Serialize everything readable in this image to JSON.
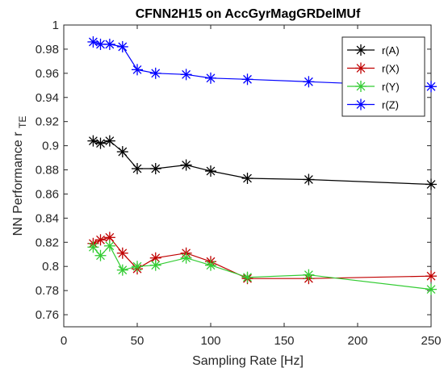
{
  "chart_data": {
    "type": "line",
    "title": "CFNN2H15 on AccGyrMagGRDelMUf",
    "xlabel": "Sampling Rate [Hz]",
    "ylabel": "NN Performance",
    "ylabel_symbol": "r",
    "ylabel_subscript": "TE",
    "xlim": [
      0,
      250
    ],
    "ylim": [
      0.75,
      1.0
    ],
    "xticks": [
      "0",
      "50",
      "100",
      "150",
      "200",
      "250"
    ],
    "yticks": [
      "0.76",
      "0.78",
      "0.8",
      "0.82",
      "0.84",
      "0.86",
      "0.88",
      "0.9",
      "0.92",
      "0.94",
      "0.96",
      "0.98",
      "1"
    ],
    "x": [
      20,
      25,
      31.25,
      40,
      50,
      62.5,
      83.3,
      100,
      125,
      166.7,
      250
    ],
    "legend_position": "top-right",
    "grid": false,
    "series": [
      {
        "name": "r(A)",
        "color": "#000000",
        "values": [
          0.904,
          0.902,
          0.904,
          0.895,
          0.881,
          0.881,
          0.884,
          0.879,
          0.873,
          0.872,
          0.868
        ]
      },
      {
        "name": "r(X)",
        "color": "#c00000",
        "values": [
          0.819,
          0.822,
          0.824,
          0.811,
          0.798,
          0.807,
          0.811,
          0.804,
          0.79,
          0.79,
          0.792
        ]
      },
      {
        "name": "r(Y)",
        "color": "#33cc33",
        "values": [
          0.816,
          0.809,
          0.817,
          0.797,
          0.8,
          0.801,
          0.807,
          0.801,
          0.791,
          0.793,
          0.781
        ]
      },
      {
        "name": "r(Z)",
        "color": "#0000ff",
        "values": [
          0.986,
          0.984,
          0.984,
          0.982,
          0.963,
          0.96,
          0.959,
          0.956,
          0.955,
          0.953,
          0.949
        ]
      }
    ]
  }
}
